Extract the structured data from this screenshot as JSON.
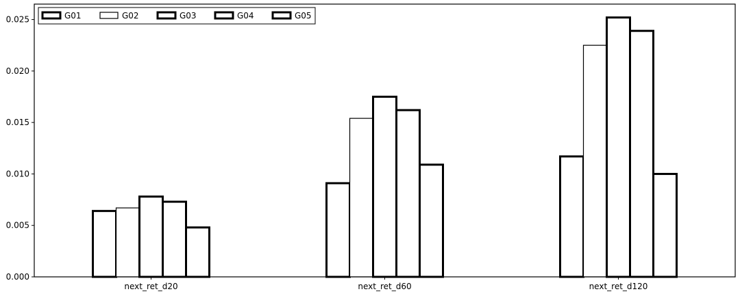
{
  "chart_data": {
    "type": "bar",
    "title": "",
    "xlabel": "",
    "ylabel": "",
    "categories": [
      "next_ret_d20",
      "next_ret_d60",
      "next_ret_d120"
    ],
    "series": [
      {
        "name": "G01",
        "values": [
          0.0064,
          0.0091,
          0.0117
        ]
      },
      {
        "name": "G02",
        "values": [
          0.0067,
          0.0154,
          0.0225
        ]
      },
      {
        "name": "G03",
        "values": [
          0.0078,
          0.0175,
          0.0252
        ]
      },
      {
        "name": "G04",
        "values": [
          0.0073,
          0.0162,
          0.0239
        ]
      },
      {
        "name": "G05",
        "values": [
          0.0048,
          0.0109,
          0.01
        ]
      }
    ],
    "ylim": [
      0,
      0.0265
    ],
    "yticks": [
      "0.000",
      "0.005",
      "0.010",
      "0.015",
      "0.020",
      "0.025"
    ],
    "grid": false,
    "legend": "top-left",
    "colors": {
      "edge": "#000000",
      "fill": "#ffffff"
    }
  }
}
